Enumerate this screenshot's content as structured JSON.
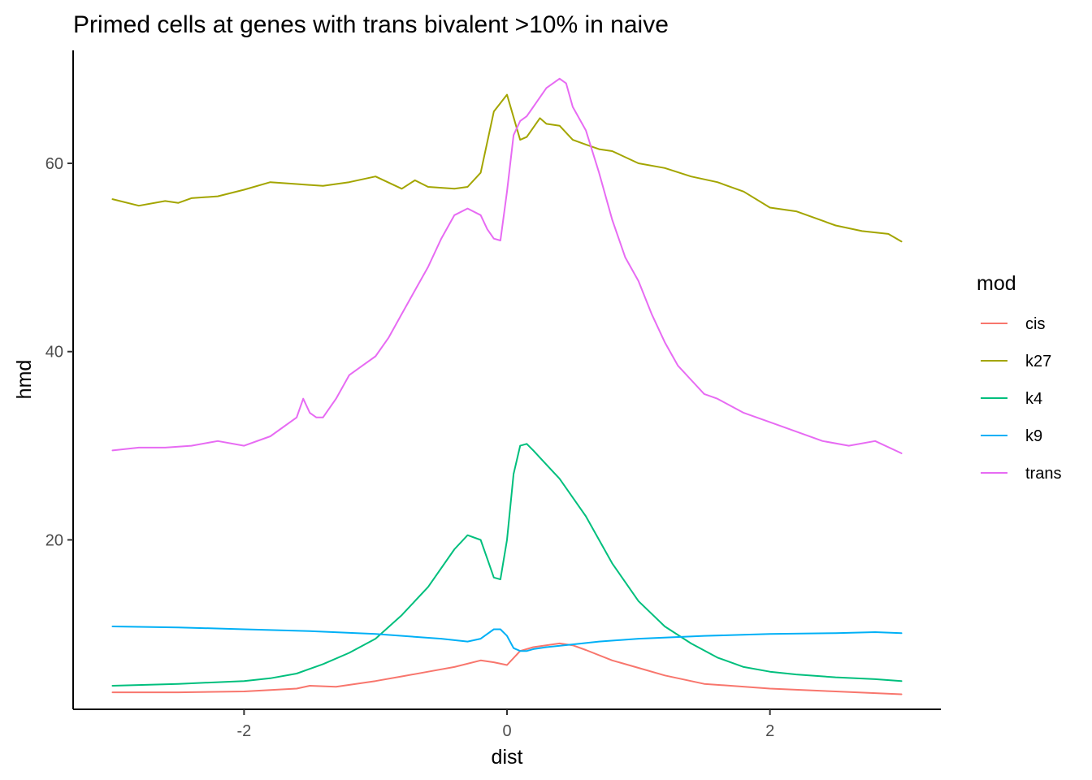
{
  "chart_data": {
    "type": "line",
    "title": "Primed cells at genes with trans bivalent >10% in naive",
    "xlabel": "dist",
    "ylabel": "hmd",
    "xlim": [
      -3.3,
      3.3
    ],
    "ylim": [
      2,
      72
    ],
    "xticks": [
      -2,
      0,
      2
    ],
    "xtick_labels": [
      "-2",
      "0",
      "2"
    ],
    "yticks": [
      20,
      40,
      60
    ],
    "ytick_labels": [
      "20",
      "40",
      "60"
    ],
    "grid": false,
    "legend": {
      "title": "mod",
      "position": "right"
    },
    "series": [
      {
        "name": "cis",
        "color": "#F8766D",
        "x": [
          -3.0,
          -2.5,
          -2.0,
          -1.6,
          -1.5,
          -1.3,
          -1.0,
          -0.8,
          -0.6,
          -0.4,
          -0.2,
          -0.1,
          0.0,
          0.1,
          0.2,
          0.4,
          0.5,
          0.6,
          0.8,
          1.0,
          1.2,
          1.5,
          2.0,
          2.5,
          3.0
        ],
        "y": [
          3.8,
          3.8,
          3.9,
          4.2,
          4.5,
          4.4,
          5.0,
          5.5,
          6.0,
          6.5,
          7.2,
          7.0,
          6.7,
          8.2,
          8.6,
          9.0,
          8.8,
          8.3,
          7.2,
          6.4,
          5.6,
          4.7,
          4.2,
          3.9,
          3.6
        ]
      },
      {
        "name": "k27",
        "color": "#A3A500",
        "x": [
          -3.0,
          -2.8,
          -2.6,
          -2.5,
          -2.4,
          -2.2,
          -2.0,
          -1.8,
          -1.6,
          -1.4,
          -1.2,
          -1.0,
          -0.8,
          -0.7,
          -0.6,
          -0.4,
          -0.3,
          -0.2,
          -0.1,
          0.0,
          0.1,
          0.15,
          0.25,
          0.3,
          0.4,
          0.5,
          0.6,
          0.7,
          0.8,
          1.0,
          1.2,
          1.4,
          1.6,
          1.8,
          2.0,
          2.2,
          2.5,
          2.7,
          2.9,
          3.0
        ],
        "y": [
          56.2,
          55.5,
          56.0,
          55.8,
          56.3,
          56.5,
          57.2,
          58.0,
          57.8,
          57.6,
          58.0,
          58.6,
          57.3,
          58.2,
          57.5,
          57.3,
          57.5,
          59.0,
          65.5,
          67.3,
          62.5,
          62.8,
          64.8,
          64.2,
          64.0,
          62.5,
          62.0,
          61.5,
          61.3,
          60.0,
          59.5,
          58.6,
          58.0,
          57.0,
          55.3,
          54.9,
          53.4,
          52.8,
          52.5,
          51.7
        ]
      },
      {
        "name": "k4",
        "color": "#00BF7D",
        "x": [
          -3.0,
          -2.5,
          -2.0,
          -1.8,
          -1.6,
          -1.4,
          -1.2,
          -1.0,
          -0.8,
          -0.6,
          -0.4,
          -0.3,
          -0.2,
          -0.15,
          -0.1,
          -0.05,
          0.0,
          0.05,
          0.1,
          0.15,
          0.2,
          0.3,
          0.4,
          0.5,
          0.6,
          0.8,
          1.0,
          1.2,
          1.4,
          1.6,
          1.8,
          2.0,
          2.2,
          2.5,
          2.8,
          3.0
        ],
        "y": [
          4.5,
          4.7,
          5.0,
          5.3,
          5.8,
          6.8,
          8.0,
          9.5,
          12.0,
          15.0,
          19.0,
          20.5,
          20.0,
          18.0,
          16.0,
          15.8,
          20.0,
          27.0,
          30.0,
          30.2,
          29.5,
          28.0,
          26.5,
          24.5,
          22.5,
          17.5,
          13.5,
          10.8,
          9.0,
          7.5,
          6.5,
          6.0,
          5.7,
          5.4,
          5.2,
          5.0
        ]
      },
      {
        "name": "k9",
        "color": "#00B0F6",
        "x": [
          -3.0,
          -2.5,
          -2.0,
          -1.5,
          -1.0,
          -0.5,
          -0.3,
          -0.2,
          -0.1,
          -0.05,
          0.0,
          0.05,
          0.1,
          0.15,
          0.2,
          0.3,
          0.5,
          0.7,
          1.0,
          1.5,
          2.0,
          2.5,
          2.8,
          3.0
        ],
        "y": [
          10.8,
          10.7,
          10.5,
          10.3,
          10.0,
          9.5,
          9.2,
          9.5,
          10.5,
          10.5,
          9.8,
          8.5,
          8.2,
          8.2,
          8.4,
          8.6,
          8.9,
          9.2,
          9.5,
          9.8,
          10.0,
          10.1,
          10.2,
          10.1
        ]
      },
      {
        "name": "trans",
        "color": "#E76BF3",
        "x": [
          -3.0,
          -2.8,
          -2.6,
          -2.4,
          -2.2,
          -2.0,
          -1.8,
          -1.6,
          -1.55,
          -1.5,
          -1.45,
          -1.4,
          -1.3,
          -1.2,
          -1.1,
          -1.0,
          -0.9,
          -0.8,
          -0.7,
          -0.6,
          -0.5,
          -0.4,
          -0.3,
          -0.2,
          -0.15,
          -0.1,
          -0.05,
          0.0,
          0.05,
          0.1,
          0.15,
          0.2,
          0.3,
          0.4,
          0.45,
          0.5,
          0.6,
          0.7,
          0.8,
          0.9,
          1.0,
          1.1,
          1.2,
          1.3,
          1.4,
          1.5,
          1.6,
          1.8,
          2.0,
          2.2,
          2.4,
          2.6,
          2.8,
          3.0
        ],
        "y": [
          29.5,
          29.8,
          29.8,
          30.0,
          30.5,
          30.0,
          31.0,
          33.0,
          35.0,
          33.5,
          33.0,
          33.0,
          35.0,
          37.5,
          38.5,
          39.5,
          41.5,
          44.0,
          46.5,
          49.0,
          52.0,
          54.5,
          55.2,
          54.5,
          53.0,
          52.0,
          51.8,
          57.0,
          63.0,
          64.5,
          65.0,
          66.0,
          68.0,
          69.0,
          68.5,
          66.0,
          63.5,
          59.0,
          54.0,
          50.0,
          47.5,
          44.0,
          41.0,
          38.5,
          37.0,
          35.5,
          35.0,
          33.5,
          32.5,
          31.5,
          30.5,
          30.0,
          30.5,
          29.2
        ]
      }
    ]
  }
}
